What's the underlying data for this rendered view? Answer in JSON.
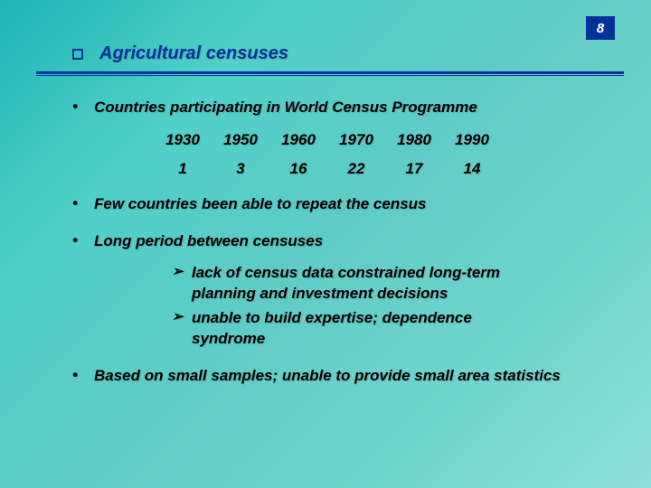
{
  "page_number": "8",
  "title": "Agricultural censuses",
  "table": {
    "headers": [
      "1930",
      "1950",
      "1960",
      "1970",
      "1980",
      "1990"
    ],
    "values": [
      "1",
      "3",
      "16",
      "22",
      "17",
      "14"
    ]
  },
  "bullets": {
    "b1": "Countries participating in World Census Programme",
    "b2": "Few countries been able to repeat the census",
    "b3": "Long period between censuses",
    "b4": "Based on small samples; unable to provide small area statistics"
  },
  "subbullets": {
    "s1": "lack of census data constrained long-term planning and investment decisions",
    "s2": "unable to build expertise; dependence syndrome"
  },
  "glyphs": {
    "dot": "•",
    "arrow": "➢"
  },
  "colors": {
    "accent": "#003399",
    "text": "#000000",
    "page_bg": "#003399",
    "page_fg": "#ffffff"
  }
}
